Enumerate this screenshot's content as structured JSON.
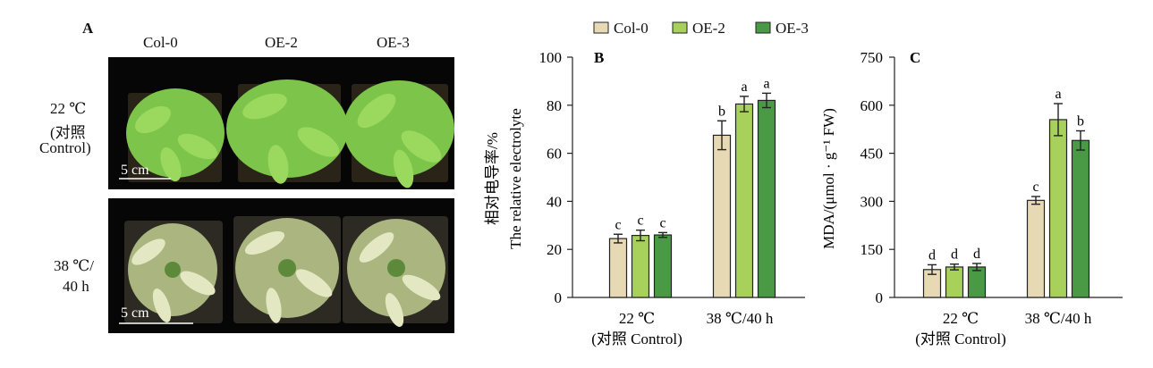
{
  "panel_a": {
    "letter": "A",
    "columns": [
      "Col-0",
      "OE-2",
      "OE-3"
    ],
    "row1": [
      "22 ℃",
      "(对照",
      "Control)"
    ],
    "row2": [
      "38 ℃/",
      "40 h"
    ],
    "scale_bar": "5 cm"
  },
  "legend": [
    "Col-0",
    "OE-2",
    "OE-3"
  ],
  "colors": {
    "col0": "#e8d9b5",
    "oe2": "#a7d15a",
    "oe3": "#4a9a45"
  },
  "chart_data": [
    {
      "type": "bar",
      "panel": "B",
      "categories": [
        "22 ℃|(对照 Control)",
        "38 ℃/40 h"
      ],
      "series": [
        {
          "name": "Col-0",
          "values": [
            24.5,
            67.5
          ],
          "errors": [
            1.8,
            6.0
          ],
          "letters": [
            "c",
            "b"
          ]
        },
        {
          "name": "OE-2",
          "values": [
            25.8,
            80.5
          ],
          "errors": [
            2.2,
            3.2
          ],
          "letters": [
            "c",
            "a"
          ]
        },
        {
          "name": "OE-3",
          "values": [
            26.0,
            82.0
          ],
          "errors": [
            1.0,
            3.0
          ],
          "letters": [
            "c",
            "a"
          ]
        }
      ],
      "ylabel_lines": [
        "相对电导率/%",
        "The relative electrolyte"
      ],
      "ylim": [
        0,
        100
      ],
      "yticks": [
        0,
        20,
        40,
        60,
        80,
        100
      ]
    },
    {
      "type": "bar",
      "panel": "C",
      "categories": [
        "22 ℃|(对照 Control)",
        "38 ℃/40 h"
      ],
      "series": [
        {
          "name": "Col-0",
          "values": [
            87,
            303
          ],
          "errors": [
            15,
            12
          ],
          "letters": [
            "d",
            "c"
          ]
        },
        {
          "name": "OE-2",
          "values": [
            95,
            555
          ],
          "errors": [
            9,
            50
          ],
          "letters": [
            "d",
            "a"
          ]
        },
        {
          "name": "OE-3",
          "values": [
            95,
            490
          ],
          "errors": [
            11,
            30
          ],
          "letters": [
            "d",
            "b"
          ]
        }
      ],
      "ylabel_lines": [
        "MDA/(μmol · g⁻¹ FW)"
      ],
      "ylim": [
        0,
        750
      ],
      "yticks": [
        0,
        150,
        300,
        450,
        600,
        750
      ]
    }
  ]
}
